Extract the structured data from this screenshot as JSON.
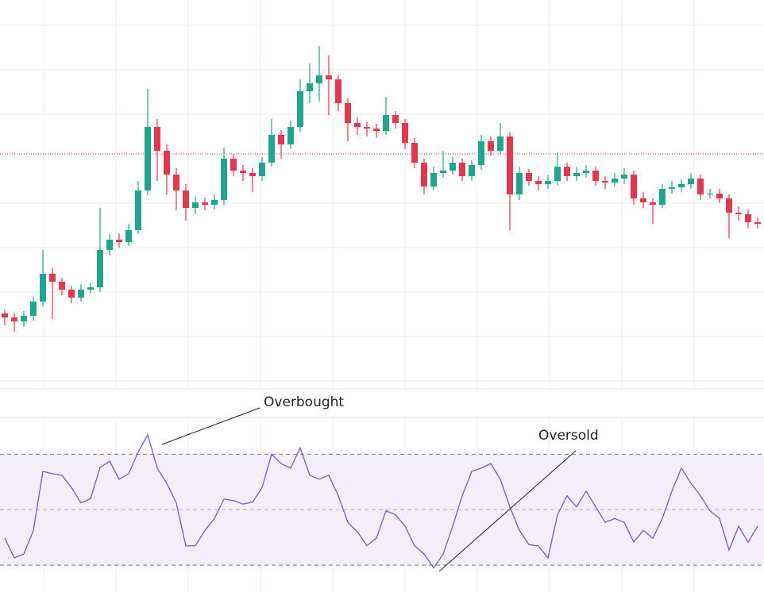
{
  "chart_data": [
    {
      "type": "candlestick",
      "up_color": "#22a58f",
      "down_color": "#e0394f",
      "ylim": [
        0,
        490
      ],
      "yticks": [
        10,
        66,
        122,
        178,
        234,
        290,
        346,
        402,
        458
      ],
      "grid": true,
      "reference_line": 296,
      "reference_color": "#e0394f",
      "open": [
        95,
        90,
        85,
        92,
        110,
        145,
        135,
        125,
        115,
        125,
        128,
        175,
        188,
        185,
        200,
        250,
        330,
        300,
        270,
        250,
        228,
        235,
        232,
        238,
        290,
        275,
        272,
        268,
        285,
        320,
        308,
        330,
        375,
        385,
        395,
        390,
        360,
        335,
        330,
        328,
        325,
        345,
        335,
        310,
        285,
        255,
        272,
        275,
        285,
        268,
        282,
        312,
        300,
        318,
        245,
        272,
        262,
        258,
        262,
        280,
        268,
        272,
        275,
        262,
        260,
        265,
        270,
        240,
        235,
        232,
        252,
        254,
        258,
        265,
        245,
        246,
        240,
        222,
        220,
        210
      ],
      "high": [
        100,
        96,
        98,
        116,
        175,
        152,
        140,
        130,
        132,
        133,
        228,
        195,
        196,
        208,
        262,
        378,
        340,
        308,
        278,
        258,
        242,
        241,
        245,
        304,
        296,
        282,
        278,
        292,
        340,
        326,
        338,
        390,
        410,
        432,
        420,
        396,
        366,
        342,
        336,
        334,
        368,
        350,
        340,
        316,
        290,
        280,
        300,
        292,
        290,
        288,
        320,
        318,
        335,
        324,
        280,
        277,
        268,
        270,
        298,
        285,
        280,
        282,
        280,
        268,
        272,
        278,
        275,
        248,
        240,
        258,
        262,
        264,
        272,
        270,
        252,
        252,
        245,
        230,
        226,
        216
      ],
      "low": [
        80,
        72,
        78,
        86,
        104,
        88,
        118,
        108,
        110,
        120,
        122,
        168,
        178,
        180,
        195,
        244,
        262,
        245,
        225,
        212,
        220,
        225,
        226,
        232,
        268,
        262,
        248,
        262,
        280,
        290,
        302,
        324,
        360,
        362,
        345,
        350,
        312,
        320,
        318,
        316,
        320,
        328,
        302,
        278,
        245,
        250,
        266,
        270,
        262,
        262,
        276,
        294,
        295,
        200,
        238,
        256,
        250,
        252,
        256,
        262,
        262,
        266,
        256,
        252,
        255,
        258,
        232,
        228,
        208,
        228,
        246,
        248,
        252,
        238,
        240,
        234,
        190,
        212,
        202,
        202
      ],
      "close": [
        90,
        85,
        92,
        110,
        145,
        135,
        125,
        115,
        125,
        128,
        175,
        188,
        185,
        200,
        250,
        330,
        300,
        270,
        250,
        228,
        235,
        232,
        238,
        290,
        275,
        272,
        268,
        285,
        320,
        308,
        330,
        375,
        385,
        395,
        390,
        360,
        335,
        330,
        328,
        325,
        345,
        335,
        310,
        285,
        255,
        272,
        275,
        285,
        268,
        282,
        312,
        300,
        318,
        245,
        272,
        262,
        258,
        262,
        280,
        268,
        272,
        275,
        262,
        260,
        265,
        270,
        240,
        235,
        232,
        252,
        254,
        258,
        265,
        245,
        246,
        240,
        222,
        220,
        210,
        208
      ]
    },
    {
      "type": "line",
      "color": "#7e57c2",
      "band_color": "#f3eefb",
      "ylim": [
        22,
        83
      ],
      "levels": [
        30,
        50,
        70
      ],
      "annotations": [
        "Overbought",
        "Oversold"
      ],
      "values": [
        39.7,
        32.6,
        34,
        42.5,
        63.8,
        63,
        62.4,
        58,
        52.4,
        54,
        65.2,
        67.5,
        61,
        63,
        70.8,
        77,
        65,
        59.5,
        52.4,
        36.9,
        37,
        42.5,
        46.8,
        53.8,
        53.3,
        52,
        52.7,
        58,
        70,
        66.6,
        65,
        72.3,
        62.4,
        61,
        62.4,
        55,
        45.4,
        42,
        37,
        39.7,
        49.6,
        48.2,
        44,
        37,
        34,
        29,
        34,
        44,
        55,
        63.8,
        65,
        66.6,
        61,
        51,
        42.5,
        37.4,
        36.9,
        32.6,
        48.2,
        55,
        51,
        56.7,
        51,
        45.4,
        46.8,
        45.4,
        38.3,
        42.5,
        39.7,
        46.8,
        56.7,
        65,
        59.5,
        55,
        49.6,
        46.8,
        35.4,
        44,
        38.3,
        44
      ]
    }
  ]
}
